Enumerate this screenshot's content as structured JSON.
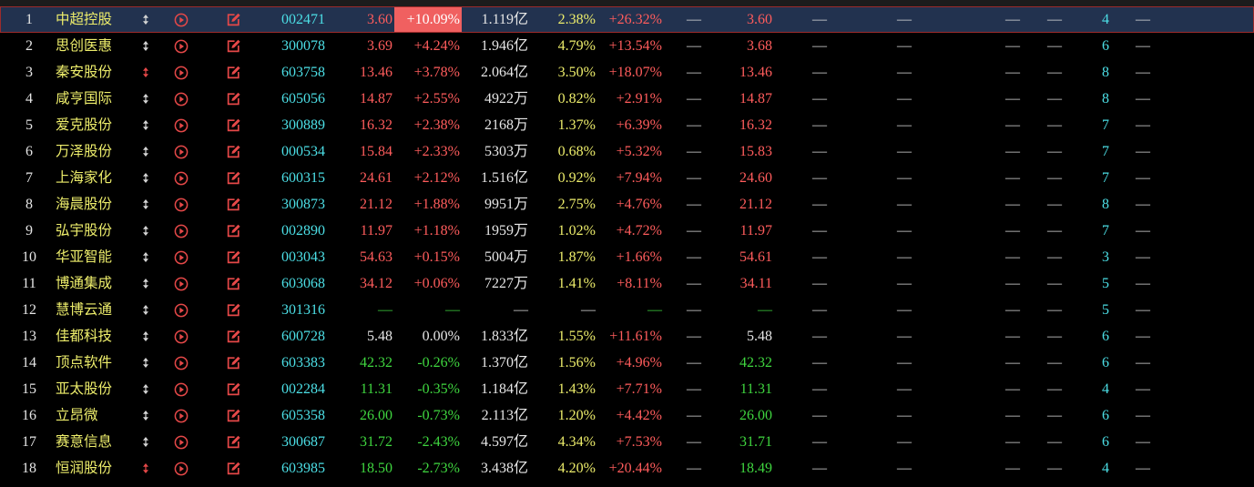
{
  "colors": {
    "background": "#000000",
    "header_strip": "#1c1c1c",
    "selected_row_bg": "#22324f",
    "selected_row_border": "#9c2b2b",
    "limit_up_bg": "#f06060",
    "limit_up_text": "#ffffff",
    "up": "#ff5c5c",
    "down": "#3fd63f",
    "flat": "#e6e6e6",
    "index": "#e6e6e6",
    "name": "#eded6b",
    "code": "#4cdfe6",
    "amount": "#e6e6e6",
    "turnover": "#eded6b",
    "dash": "#dcdcdc",
    "count": "#4cdfe6",
    "action_icon": "#e54848",
    "marker": "#d4d4d4",
    "marker_alert": "#e54848"
  },
  "icons": {
    "marker": "updown-marker-icon",
    "play": "play-circle-icon",
    "edit": "edit-icon"
  },
  "rows": [
    {
      "no": "1",
      "name": "中超控股",
      "code": "002471",
      "price": "3.60",
      "change": "+10.09%",
      "amount": "1.119亿",
      "turnover": "2.38%",
      "change_2": "+26.32%",
      "blank_1": "—",
      "price_2": "3.60",
      "blank_2": "—",
      "blank_3": "—",
      "blank_4": "—",
      "blank_5": "—",
      "count": "4",
      "blank_6": "—",
      "selected": true,
      "limit_up": true,
      "marker_alert": false
    },
    {
      "no": "2",
      "name": "思创医惠",
      "code": "300078",
      "price": "3.69",
      "change": "+4.24%",
      "amount": "1.946亿",
      "turnover": "4.79%",
      "change_2": "+13.54%",
      "blank_1": "—",
      "price_2": "3.68",
      "blank_2": "—",
      "blank_3": "—",
      "blank_4": "—",
      "blank_5": "—",
      "count": "6",
      "blank_6": "—",
      "selected": false,
      "limit_up": false,
      "marker_alert": false
    },
    {
      "no": "3",
      "name": "秦安股份",
      "code": "603758",
      "price": "13.46",
      "change": "+3.78%",
      "amount": "2.064亿",
      "turnover": "3.50%",
      "change_2": "+18.07%",
      "blank_1": "—",
      "price_2": "13.46",
      "blank_2": "—",
      "blank_3": "—",
      "blank_4": "—",
      "blank_5": "—",
      "count": "8",
      "blank_6": "—",
      "selected": false,
      "limit_up": false,
      "marker_alert": true
    },
    {
      "no": "4",
      "name": "咸亨国际",
      "code": "605056",
      "price": "14.87",
      "change": "+2.55%",
      "amount": "4922万",
      "turnover": "0.82%",
      "change_2": "+2.91%",
      "blank_1": "—",
      "price_2": "14.87",
      "blank_2": "—",
      "blank_3": "—",
      "blank_4": "—",
      "blank_5": "—",
      "count": "8",
      "blank_6": "—",
      "selected": false,
      "limit_up": false,
      "marker_alert": false
    },
    {
      "no": "5",
      "name": "爱克股份",
      "code": "300889",
      "price": "16.32",
      "change": "+2.38%",
      "amount": "2168万",
      "turnover": "1.37%",
      "change_2": "+6.39%",
      "blank_1": "—",
      "price_2": "16.32",
      "blank_2": "—",
      "blank_3": "—",
      "blank_4": "—",
      "blank_5": "—",
      "count": "7",
      "blank_6": "—",
      "selected": false,
      "limit_up": false,
      "marker_alert": false
    },
    {
      "no": "6",
      "name": "万泽股份",
      "code": "000534",
      "price": "15.84",
      "change": "+2.33%",
      "amount": "5303万",
      "turnover": "0.68%",
      "change_2": "+5.32%",
      "blank_1": "—",
      "price_2": "15.83",
      "blank_2": "—",
      "blank_3": "—",
      "blank_4": "—",
      "blank_5": "—",
      "count": "7",
      "blank_6": "—",
      "selected": false,
      "limit_up": false,
      "marker_alert": false
    },
    {
      "no": "7",
      "name": "上海家化",
      "code": "600315",
      "price": "24.61",
      "change": "+2.12%",
      "amount": "1.516亿",
      "turnover": "0.92%",
      "change_2": "+7.94%",
      "blank_1": "—",
      "price_2": "24.60",
      "blank_2": "—",
      "blank_3": "—",
      "blank_4": "—",
      "blank_5": "—",
      "count": "7",
      "blank_6": "—",
      "selected": false,
      "limit_up": false,
      "marker_alert": false
    },
    {
      "no": "8",
      "name": "海晨股份",
      "code": "300873",
      "price": "21.12",
      "change": "+1.88%",
      "amount": "9951万",
      "turnover": "2.75%",
      "change_2": "+4.76%",
      "blank_1": "—",
      "price_2": "21.12",
      "blank_2": "—",
      "blank_3": "—",
      "blank_4": "—",
      "blank_5": "—",
      "count": "8",
      "blank_6": "—",
      "selected": false,
      "limit_up": false,
      "marker_alert": false
    },
    {
      "no": "9",
      "name": "弘宇股份",
      "code": "002890",
      "price": "11.97",
      "change": "+1.18%",
      "amount": "1959万",
      "turnover": "1.02%",
      "change_2": "+4.72%",
      "blank_1": "—",
      "price_2": "11.97",
      "blank_2": "—",
      "blank_3": "—",
      "blank_4": "—",
      "blank_5": "—",
      "count": "7",
      "blank_6": "—",
      "selected": false,
      "limit_up": false,
      "marker_alert": false
    },
    {
      "no": "10",
      "name": "华亚智能",
      "code": "003043",
      "price": "54.63",
      "change": "+0.15%",
      "amount": "5004万",
      "turnover": "1.87%",
      "change_2": "+1.66%",
      "blank_1": "—",
      "price_2": "54.61",
      "blank_2": "—",
      "blank_3": "—",
      "blank_4": "—",
      "blank_5": "—",
      "count": "3",
      "blank_6": "—",
      "selected": false,
      "limit_up": false,
      "marker_alert": false
    },
    {
      "no": "11",
      "name": "博通集成",
      "code": "603068",
      "price": "34.12",
      "change": "+0.06%",
      "amount": "7227万",
      "turnover": "1.41%",
      "change_2": "+8.11%",
      "blank_1": "—",
      "price_2": "34.11",
      "blank_2": "—",
      "blank_3": "—",
      "blank_4": "—",
      "blank_5": "—",
      "count": "5",
      "blank_6": "—",
      "selected": false,
      "limit_up": false,
      "marker_alert": false
    },
    {
      "no": "12",
      "name": "慧博云通",
      "code": "301316",
      "price": "—",
      "change": "—",
      "amount": "—",
      "turnover": "—",
      "change_2": "—",
      "blank_1": "—",
      "price_2": "—",
      "blank_2": "—",
      "blank_3": "—",
      "blank_4": "—",
      "blank_5": "—",
      "count": "5",
      "blank_6": "—",
      "selected": false,
      "limit_up": false,
      "marker_alert": false
    },
    {
      "no": "13",
      "name": "佳都科技",
      "code": "600728",
      "price": "5.48",
      "change": "0.00%",
      "amount": "1.833亿",
      "turnover": "1.55%",
      "change_2": "+11.61%",
      "blank_1": "—",
      "price_2": "5.48",
      "blank_2": "—",
      "blank_3": "—",
      "blank_4": "—",
      "blank_5": "—",
      "count": "6",
      "blank_6": "—",
      "selected": false,
      "limit_up": false,
      "marker_alert": false
    },
    {
      "no": "14",
      "name": "顶点软件",
      "code": "603383",
      "price": "42.32",
      "change": "-0.26%",
      "amount": "1.370亿",
      "turnover": "1.56%",
      "change_2": "+4.96%",
      "blank_1": "—",
      "price_2": "42.32",
      "blank_2": "—",
      "blank_3": "—",
      "blank_4": "—",
      "blank_5": "—",
      "count": "6",
      "blank_6": "—",
      "selected": false,
      "limit_up": false,
      "marker_alert": false
    },
    {
      "no": "15",
      "name": "亚太股份",
      "code": "002284",
      "price": "11.31",
      "change": "-0.35%",
      "amount": "1.184亿",
      "turnover": "1.43%",
      "change_2": "+7.71%",
      "blank_1": "—",
      "price_2": "11.31",
      "blank_2": "—",
      "blank_3": "—",
      "blank_4": "—",
      "blank_5": "—",
      "count": "4",
      "blank_6": "—",
      "selected": false,
      "limit_up": false,
      "marker_alert": false
    },
    {
      "no": "16",
      "name": "立昂微",
      "code": "605358",
      "price": "26.00",
      "change": "-0.73%",
      "amount": "2.113亿",
      "turnover": "1.20%",
      "change_2": "+4.42%",
      "blank_1": "—",
      "price_2": "26.00",
      "blank_2": "—",
      "blank_3": "—",
      "blank_4": "—",
      "blank_5": "—",
      "count": "6",
      "blank_6": "—",
      "selected": false,
      "limit_up": false,
      "marker_alert": false
    },
    {
      "no": "17",
      "name": "赛意信息",
      "code": "300687",
      "price": "31.72",
      "change": "-2.43%",
      "amount": "4.597亿",
      "turnover": "4.34%",
      "change_2": "+7.53%",
      "blank_1": "—",
      "price_2": "31.71",
      "blank_2": "—",
      "blank_3": "—",
      "blank_4": "—",
      "blank_5": "—",
      "count": "6",
      "blank_6": "—",
      "selected": false,
      "limit_up": false,
      "marker_alert": false
    },
    {
      "no": "18",
      "name": "恒润股份",
      "code": "603985",
      "price": "18.50",
      "change": "-2.73%",
      "amount": "3.438亿",
      "turnover": "4.20%",
      "change_2": "+20.44%",
      "blank_1": "—",
      "price_2": "18.49",
      "blank_2": "—",
      "blank_3": "—",
      "blank_4": "—",
      "blank_5": "—",
      "count": "4",
      "blank_6": "—",
      "selected": false,
      "limit_up": false,
      "marker_alert": true
    }
  ]
}
